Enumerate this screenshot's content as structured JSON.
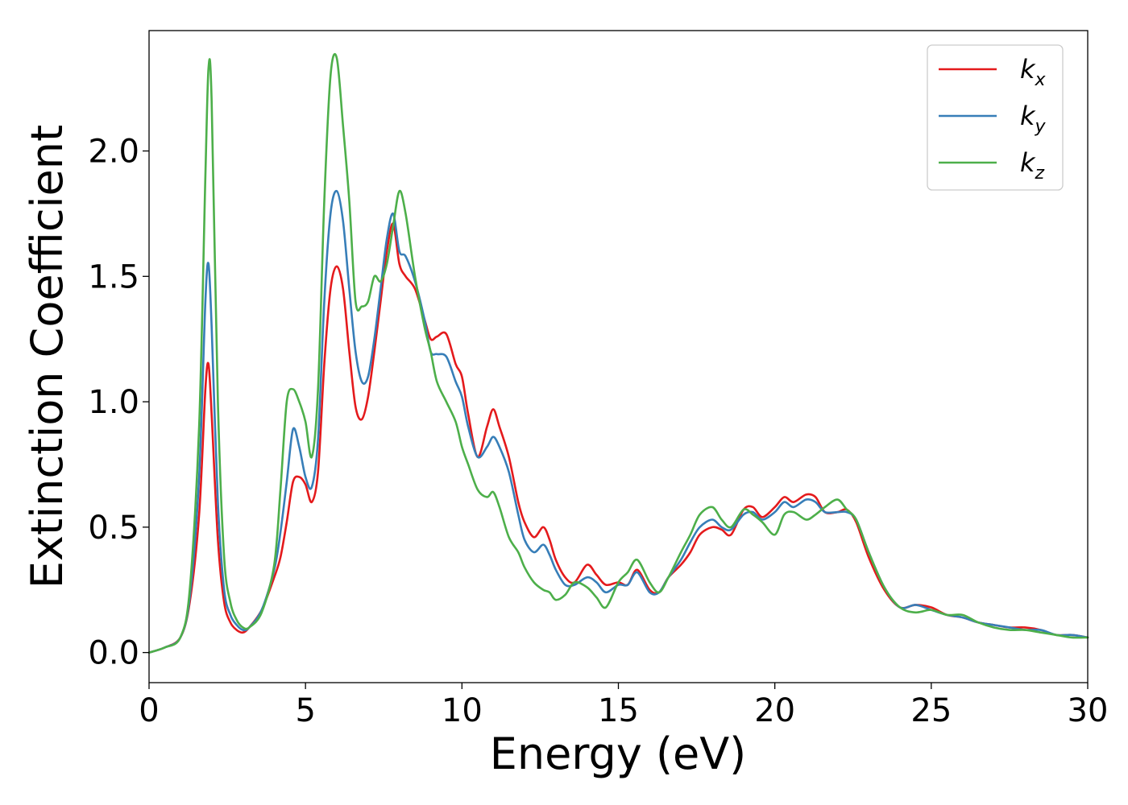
{
  "chart_data": {
    "type": "line",
    "title": "",
    "xlabel": "Energy (eV)",
    "ylabel": "Extinction Coefficient",
    "xlim": [
      0,
      30
    ],
    "ylim": [
      -0.12,
      2.48
    ],
    "x_ticks": [
      "0",
      "5",
      "10",
      "15",
      "20",
      "25",
      "30"
    ],
    "y_ticks": [
      "0.0",
      "0.5",
      "1.0",
      "1.5",
      "2.0"
    ],
    "grid": false,
    "legend_position": "top-right",
    "legend": [
      {
        "base": "k",
        "sub": "x"
      },
      {
        "base": "k",
        "sub": "y"
      },
      {
        "base": "k",
        "sub": "z"
      }
    ],
    "x": [
      0,
      0.5,
      1.0,
      1.3,
      1.6,
      1.8,
      1.9,
      2.0,
      2.2,
      2.4,
      2.6,
      2.8,
      3.0,
      3.2,
      3.6,
      4.0,
      4.2,
      4.4,
      4.6,
      4.8,
      5.0,
      5.2,
      5.4,
      5.6,
      5.8,
      6.0,
      6.2,
      6.4,
      6.6,
      6.8,
      7.0,
      7.2,
      7.4,
      7.6,
      7.8,
      8.0,
      8.2,
      8.5,
      8.8,
      9.0,
      9.2,
      9.5,
      9.8,
      10.0,
      10.2,
      10.5,
      10.8,
      11.0,
      11.2,
      11.5,
      11.8,
      12.0,
      12.3,
      12.6,
      12.8,
      13.0,
      13.3,
      13.6,
      14.0,
      14.3,
      14.6,
      15.0,
      15.3,
      15.6,
      16.0,
      16.3,
      16.6,
      17.0,
      17.3,
      17.6,
      18.0,
      18.3,
      18.6,
      19.0,
      19.3,
      19.6,
      20.0,
      20.3,
      20.6,
      21.0,
      21.3,
      21.6,
      22.0,
      22.3,
      22.6,
      23.0,
      23.5,
      24.0,
      24.5,
      25.0,
      25.5,
      26.0,
      26.5,
      27.0,
      27.5,
      28.0,
      28.5,
      29.0,
      29.5,
      30.0
    ],
    "series": [
      {
        "name": "kx",
        "color": "#e41a1c",
        "values": [
          0.0,
          0.02,
          0.06,
          0.2,
          0.55,
          1.05,
          1.15,
          0.95,
          0.45,
          0.2,
          0.12,
          0.09,
          0.08,
          0.1,
          0.17,
          0.3,
          0.38,
          0.52,
          0.68,
          0.7,
          0.67,
          0.6,
          0.72,
          1.15,
          1.45,
          1.54,
          1.45,
          1.2,
          0.98,
          0.93,
          1.02,
          1.2,
          1.4,
          1.6,
          1.71,
          1.55,
          1.5,
          1.45,
          1.33,
          1.25,
          1.26,
          1.27,
          1.15,
          1.1,
          0.95,
          0.78,
          0.9,
          0.97,
          0.9,
          0.78,
          0.6,
          0.52,
          0.46,
          0.5,
          0.45,
          0.37,
          0.3,
          0.28,
          0.35,
          0.31,
          0.27,
          0.28,
          0.27,
          0.33,
          0.25,
          0.24,
          0.3,
          0.35,
          0.4,
          0.47,
          0.5,
          0.49,
          0.47,
          0.57,
          0.58,
          0.54,
          0.58,
          0.62,
          0.6,
          0.63,
          0.62,
          0.56,
          0.56,
          0.57,
          0.52,
          0.38,
          0.25,
          0.18,
          0.19,
          0.18,
          0.15,
          0.14,
          0.12,
          0.11,
          0.1,
          0.1,
          0.09,
          0.07,
          0.07,
          0.06
        ]
      },
      {
        "name": "ky",
        "color": "#377eb8",
        "values": [
          0.0,
          0.02,
          0.06,
          0.22,
          0.7,
          1.4,
          1.55,
          1.3,
          0.6,
          0.25,
          0.15,
          0.11,
          0.09,
          0.1,
          0.17,
          0.33,
          0.48,
          0.68,
          0.89,
          0.82,
          0.7,
          0.66,
          0.85,
          1.4,
          1.75,
          1.84,
          1.72,
          1.45,
          1.2,
          1.08,
          1.1,
          1.25,
          1.45,
          1.65,
          1.75,
          1.6,
          1.58,
          1.48,
          1.33,
          1.2,
          1.19,
          1.18,
          1.08,
          1.02,
          0.9,
          0.78,
          0.82,
          0.86,
          0.82,
          0.72,
          0.55,
          0.45,
          0.4,
          0.43,
          0.39,
          0.33,
          0.27,
          0.27,
          0.3,
          0.28,
          0.24,
          0.27,
          0.27,
          0.32,
          0.24,
          0.24,
          0.3,
          0.37,
          0.44,
          0.5,
          0.53,
          0.5,
          0.49,
          0.55,
          0.56,
          0.53,
          0.56,
          0.6,
          0.58,
          0.61,
          0.6,
          0.56,
          0.56,
          0.56,
          0.53,
          0.4,
          0.26,
          0.18,
          0.19,
          0.17,
          0.15,
          0.14,
          0.12,
          0.11,
          0.1,
          0.09,
          0.09,
          0.07,
          0.07,
          0.06
        ]
      },
      {
        "name": "kz",
        "color": "#4daf4a",
        "values": [
          0.0,
          0.02,
          0.06,
          0.25,
          0.9,
          1.9,
          2.33,
          2.2,
          1.0,
          0.38,
          0.2,
          0.13,
          0.1,
          0.1,
          0.16,
          0.35,
          0.65,
          1.0,
          1.05,
          1.0,
          0.92,
          0.78,
          1.05,
          1.8,
          2.3,
          2.37,
          2.1,
          1.8,
          1.4,
          1.38,
          1.4,
          1.5,
          1.48,
          1.55,
          1.7,
          1.84,
          1.75,
          1.5,
          1.3,
          1.2,
          1.08,
          1.0,
          0.92,
          0.82,
          0.75,
          0.65,
          0.62,
          0.64,
          0.58,
          0.46,
          0.4,
          0.34,
          0.28,
          0.25,
          0.24,
          0.21,
          0.23,
          0.28,
          0.26,
          0.22,
          0.18,
          0.28,
          0.32,
          0.37,
          0.28,
          0.24,
          0.3,
          0.4,
          0.47,
          0.55,
          0.58,
          0.53,
          0.5,
          0.57,
          0.55,
          0.52,
          0.47,
          0.55,
          0.56,
          0.53,
          0.55,
          0.58,
          0.61,
          0.57,
          0.53,
          0.4,
          0.26,
          0.18,
          0.16,
          0.17,
          0.15,
          0.15,
          0.12,
          0.1,
          0.09,
          0.09,
          0.08,
          0.07,
          0.06,
          0.06
        ]
      }
    ]
  }
}
